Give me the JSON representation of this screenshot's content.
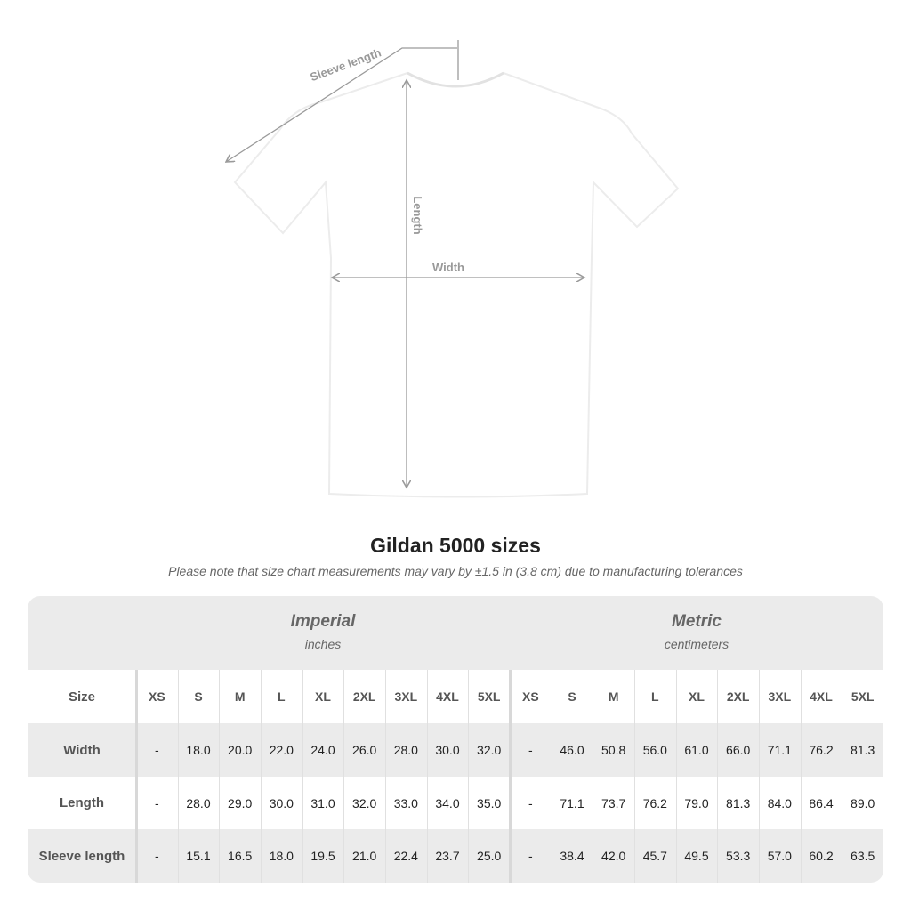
{
  "diagram": {
    "labels": {
      "sleeve": "Sleeve length",
      "length": "Length",
      "width": "Width"
    },
    "shirt_color": "#ffffff",
    "line_color": "#9a9a9a"
  },
  "title": "Gildan 5000 sizes",
  "note": "Please note that size chart measurements may vary by ±1.5 in (3.8 cm) due to manufacturing tolerances",
  "table": {
    "imperial": {
      "name": "Imperial",
      "unit": "inches"
    },
    "metric": {
      "name": "Metric",
      "unit": "centimeters"
    },
    "size_label": "Size",
    "sizes": [
      "XS",
      "S",
      "M",
      "L",
      "XL",
      "2XL",
      "3XL",
      "4XL",
      "5XL"
    ],
    "rows": [
      {
        "label": "Width",
        "imperial": [
          "-",
          "18.0",
          "20.0",
          "22.0",
          "24.0",
          "26.0",
          "28.0",
          "30.0",
          "32.0"
        ],
        "metric": [
          "-",
          "46.0",
          "50.8",
          "56.0",
          "61.0",
          "66.0",
          "71.1",
          "76.2",
          "81.3"
        ]
      },
      {
        "label": "Length",
        "imperial": [
          "-",
          "28.0",
          "29.0",
          "30.0",
          "31.0",
          "32.0",
          "33.0",
          "34.0",
          "35.0"
        ],
        "metric": [
          "-",
          "71.1",
          "73.7",
          "76.2",
          "79.0",
          "81.3",
          "84.0",
          "86.4",
          "89.0"
        ]
      },
      {
        "label": "Sleeve length",
        "imperial": [
          "-",
          "15.1",
          "16.5",
          "18.0",
          "19.5",
          "21.0",
          "22.4",
          "23.7",
          "25.0"
        ],
        "metric": [
          "-",
          "38.4",
          "42.0",
          "45.7",
          "49.5",
          "53.3",
          "57.0",
          "60.2",
          "63.5"
        ]
      }
    ]
  }
}
